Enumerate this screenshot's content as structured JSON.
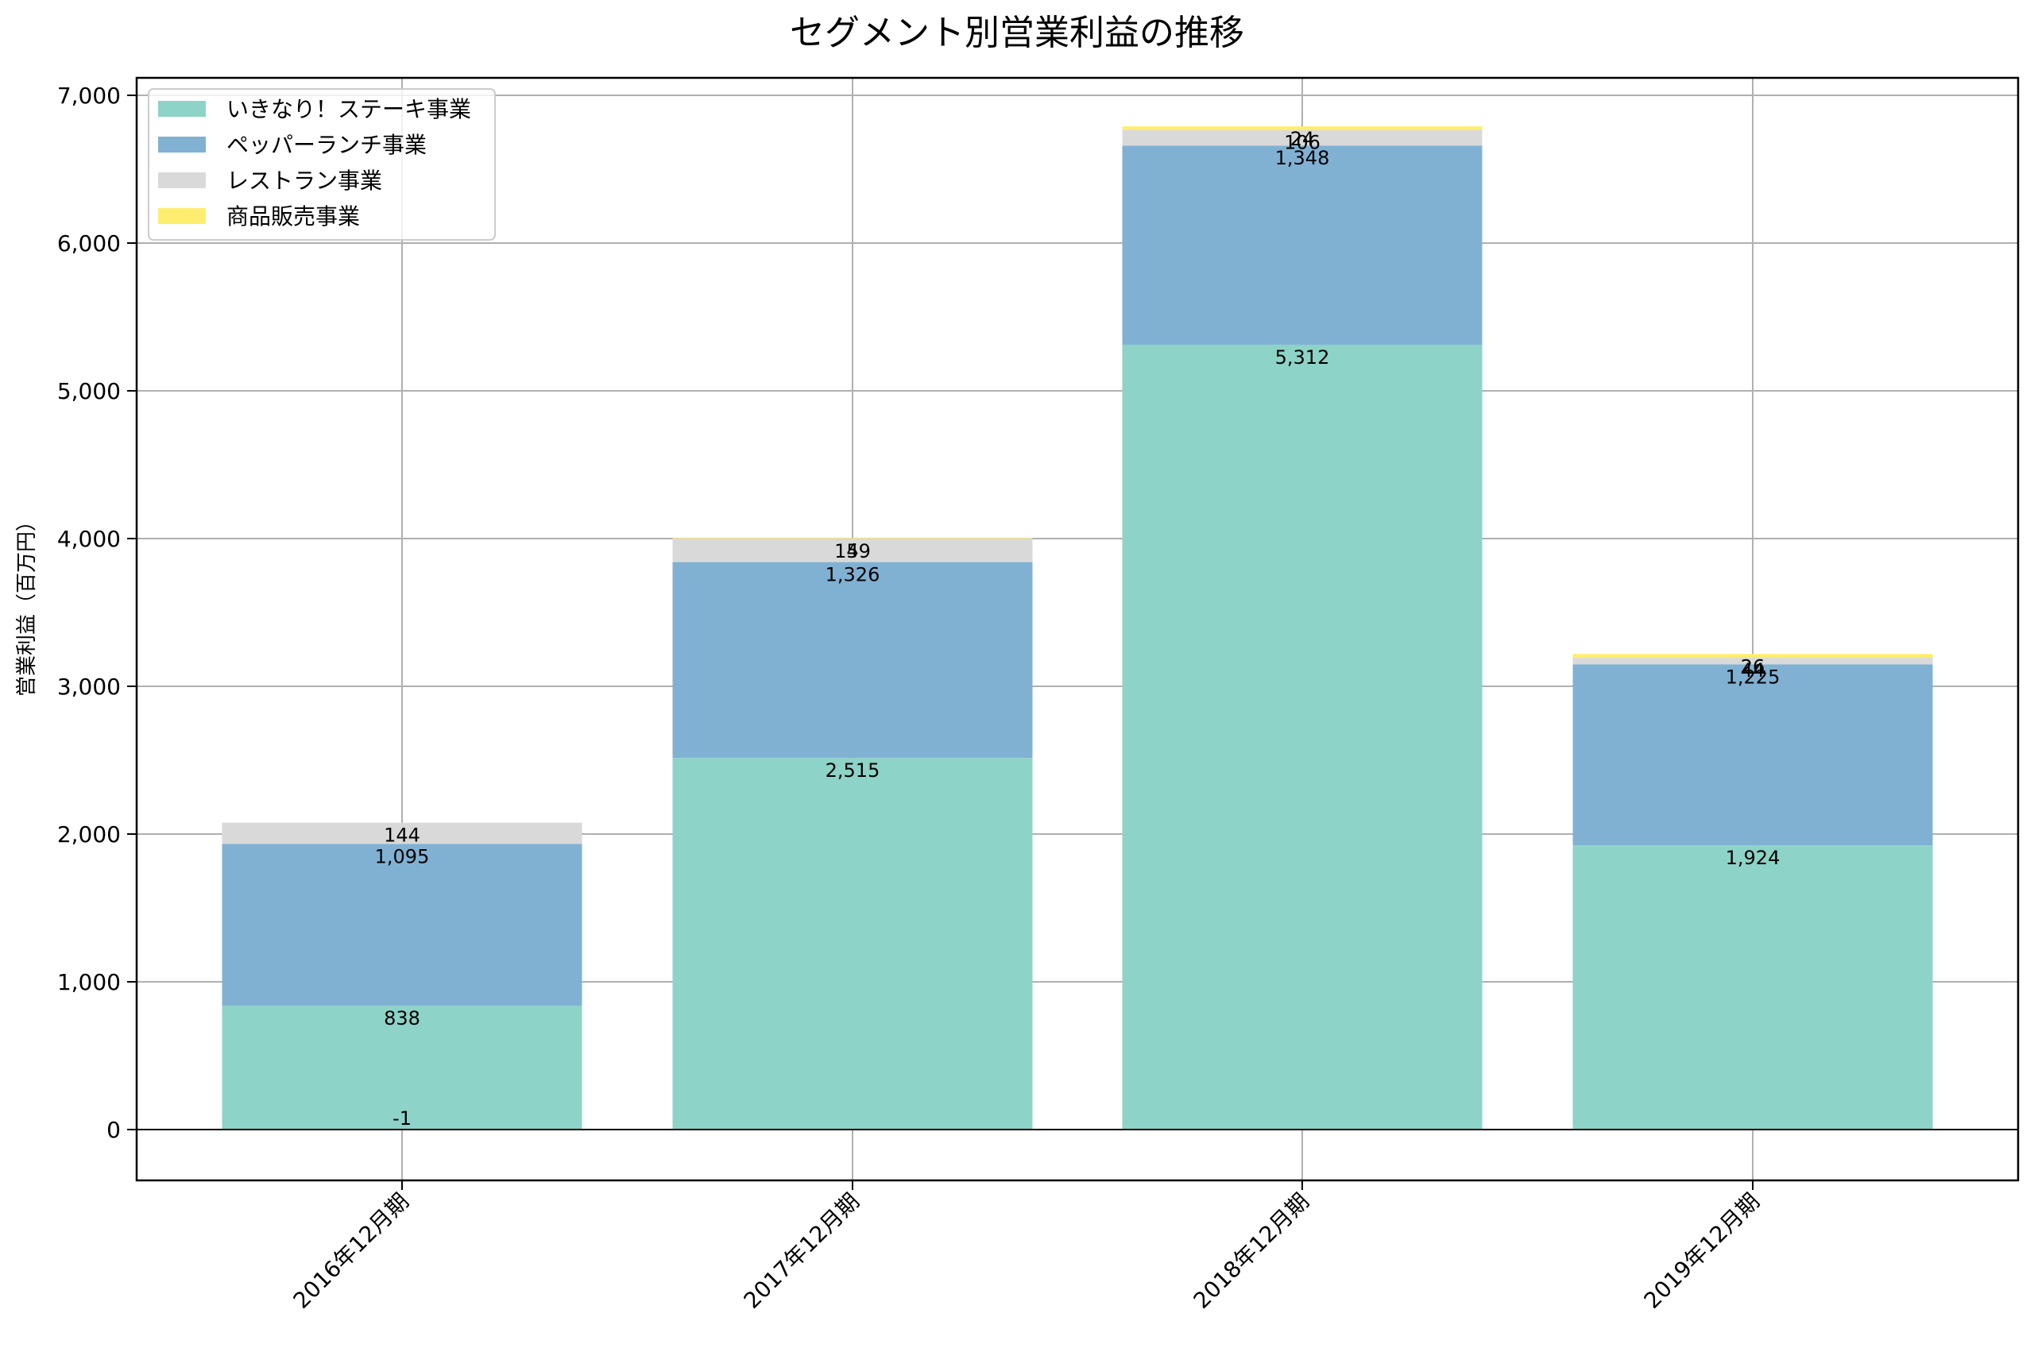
{
  "chart_data": {
    "type": "bar",
    "stacked": true,
    "title": "セグメント別営業利益の推移",
    "xlabel": "",
    "ylabel": "営業利益（百万円）",
    "ylim": [
      -344,
      7120
    ],
    "yticks": [
      0,
      1000,
      2000,
      3000,
      4000,
      5000,
      6000,
      7000
    ],
    "ytick_labels": [
      "0",
      "1,000",
      "2,000",
      "3,000",
      "4,000",
      "5,000",
      "6,000",
      "7,000"
    ],
    "grid": true,
    "legend_position": "upper left",
    "categories": [
      "2016年12月期",
      "2017年12月期",
      "2018年12月期",
      "2019年12月期"
    ],
    "series": [
      {
        "name": "いきなり！ステーキ事業",
        "color": "#8dd3c7",
        "values": [
          838,
          2515,
          5312,
          1924
        ],
        "labels": [
          "838",
          "2,515",
          "5,312",
          "1,924"
        ]
      },
      {
        "name": "ペッパーランチ事業",
        "color": "#80b1d3",
        "values": [
          1095,
          1326,
          1348,
          1225
        ],
        "labels": [
          "1,095",
          "1,326",
          "1,348",
          "1,225"
        ]
      },
      {
        "name": "レストラン事業",
        "color": "#d9d9d9",
        "values": [
          144,
          159,
          106,
          44
        ],
        "labels": [
          "144",
          "159",
          "106",
          "44"
        ]
      },
      {
        "name": "商品販売事業",
        "color": "#ffed6f",
        "values": [
          -1,
          4,
          24,
          26
        ],
        "labels": [
          "-1",
          "4",
          "24",
          "26"
        ]
      }
    ]
  }
}
